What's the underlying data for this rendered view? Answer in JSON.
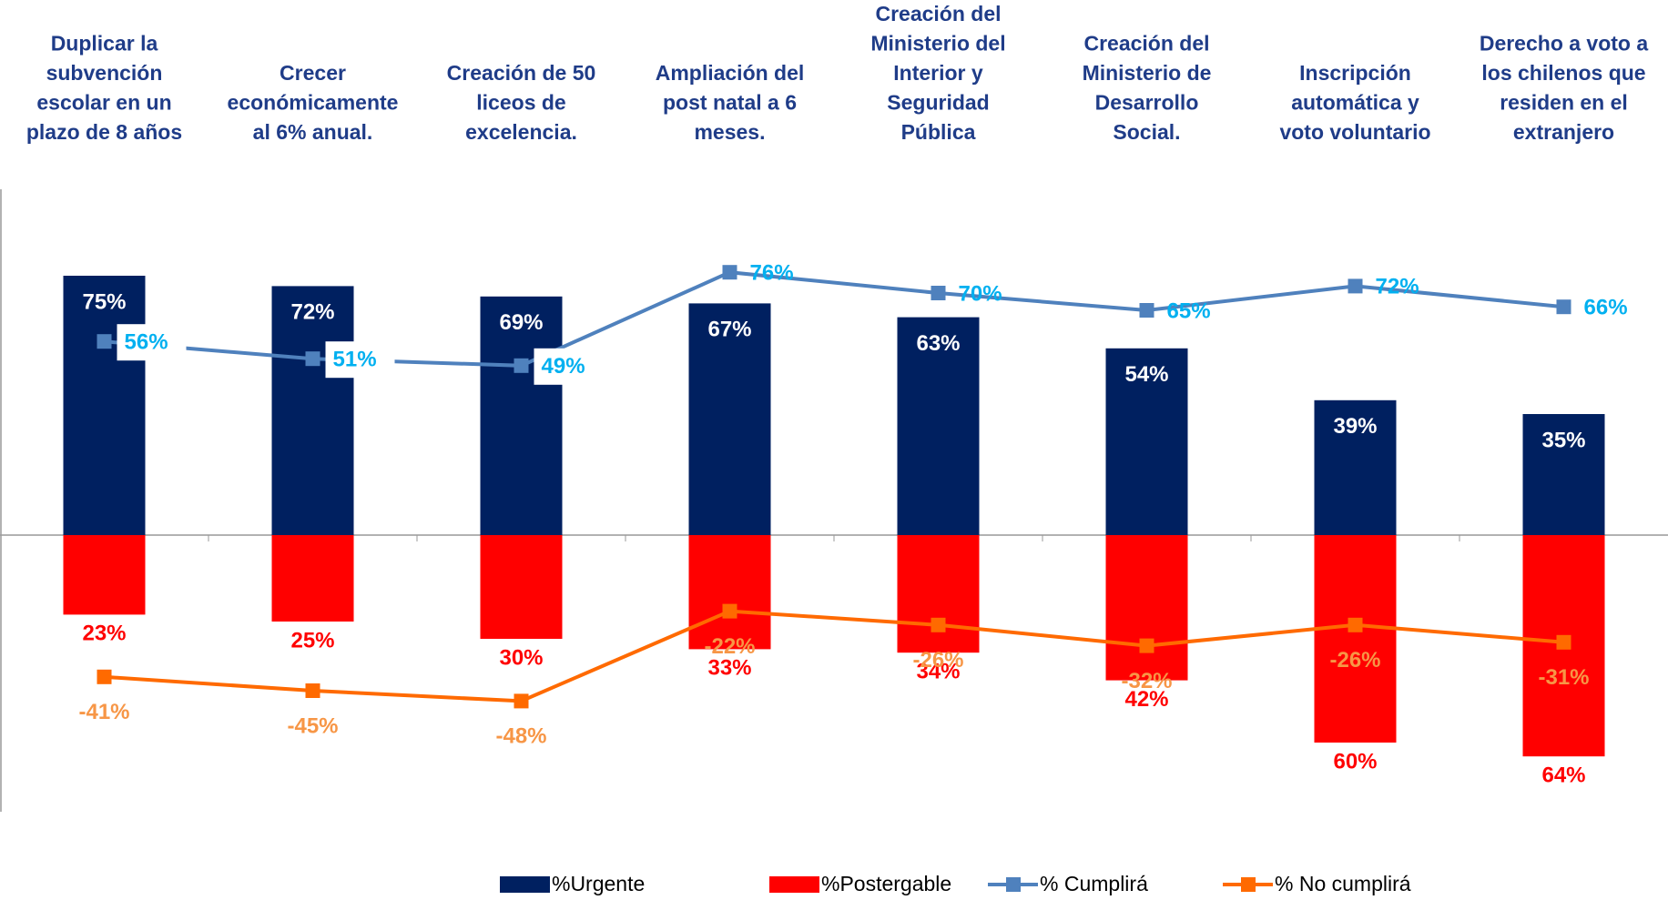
{
  "chart_data": {
    "type": "bar_line",
    "categories": [
      "Duplicar la\nsubvención\nescolar en un\nplazo de 8 años",
      "Crecer\neconómicamente\nal 6% anual.",
      "Creación de 50\nliceos de\nexcelencia.",
      "Ampliación del\npost natal a 6\nmeses.",
      "Creación del\nMinisterio del\nInterior y\nSeguridad\nPública",
      "Creación del\nMinisterio de\nDesarrollo\nSocial.",
      "Inscripción\nautomática y\nvoto voluntario",
      "Derecho a voto a\nlos chilenos que\nresiden en el\nextranjero"
    ],
    "series": [
      {
        "name": "%Urgente",
        "kind": "bar",
        "color": "#002060",
        "values": [
          75,
          72,
          69,
          67,
          63,
          54,
          39,
          35
        ],
        "value_labels": [
          "75%",
          "72%",
          "69%",
          "67%",
          "63%",
          "54%",
          "39%",
          "35%"
        ]
      },
      {
        "name": "%Postergable",
        "kind": "bar",
        "color": "#ff0000",
        "values": [
          -23,
          -25,
          -30,
          -33,
          -34,
          -42,
          -60,
          -64
        ],
        "value_labels": [
          "23%",
          "25%",
          "30%",
          "33%",
          "34%",
          "42%",
          "60%",
          "64%"
        ]
      },
      {
        "name": "% Cumplirá",
        "kind": "line",
        "color": "#4f81bd",
        "values": [
          56,
          51,
          49,
          76,
          70,
          65,
          72,
          66
        ],
        "value_labels": [
          "56%",
          "51%",
          "49%",
          "76%",
          "70%",
          "65%",
          "72%",
          "66%"
        ]
      },
      {
        "name": "% No cumplirá",
        "kind": "line",
        "color": "#ff6a00",
        "values": [
          -41,
          -45,
          -48,
          -22,
          -26,
          -32,
          -26,
          -31
        ],
        "value_labels": [
          "-41%",
          "-45%",
          "-48%",
          "-22%",
          "-26%",
          "-32%",
          "-26%",
          "-31%"
        ]
      }
    ],
    "ylim": [
      -80,
      100
    ],
    "legend": "bottom"
  }
}
